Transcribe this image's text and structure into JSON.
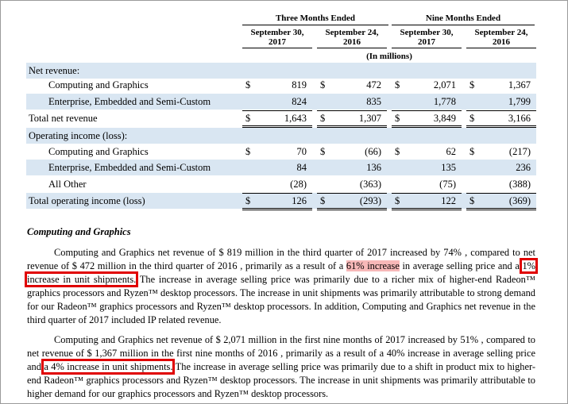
{
  "table": {
    "group_headers": [
      "Three Months Ended",
      "Nine Months Ended"
    ],
    "column_headers": [
      [
        "September 30,",
        "2017"
      ],
      [
        "September 24,",
        "2016"
      ],
      [
        "September 30,",
        "2017"
      ],
      [
        "September 24,",
        "2016"
      ]
    ],
    "units_note": "(In millions)",
    "rows": [
      {
        "label": "Net revenue:",
        "cells": [
          "",
          "",
          "",
          ""
        ],
        "dollars": false
      },
      {
        "label": "Computing and Graphics",
        "cells": [
          "819",
          "472",
          "2,071",
          "1,367"
        ],
        "dollars": true
      },
      {
        "label": "Enterprise, Embedded and Semi-Custom",
        "cells": [
          "824",
          "835",
          "1,778",
          "1,799"
        ],
        "dollars": false
      },
      {
        "label": "Total net revenue",
        "cells": [
          "1,643",
          "1,307",
          "3,849",
          "3,166"
        ],
        "dollars": true
      },
      {
        "label": "Operating income (loss):",
        "cells": [
          "",
          "",
          "",
          ""
        ],
        "dollars": false
      },
      {
        "label": "Computing and Graphics",
        "cells": [
          "70",
          "(66)",
          "62",
          "(217)"
        ],
        "dollars": true
      },
      {
        "label": "Enterprise, Embedded and Semi-Custom",
        "cells": [
          "84",
          "136",
          "135",
          "236"
        ],
        "dollars": false
      },
      {
        "label": "All Other",
        "cells": [
          "(28)",
          "(363)",
          "(75)",
          "(388)"
        ],
        "dollars": false
      },
      {
        "label": "Total operating income (loss)",
        "cells": [
          "126",
          "(293)",
          "122",
          "(369)"
        ],
        "dollars": true
      }
    ],
    "currency_symbol": "$"
  },
  "section": {
    "heading": "Computing and Graphics",
    "p1": {
      "a": "Computing and Graphics net revenue of $ 819 million in the third quarter of 2017 increased by 74% , compared to net revenue of $ 472 million in the third quarter of 2016 , primarily as a result of a ",
      "highlight": "61% increase",
      "b": " in average selling price and a ",
      "boxed": "1% increase in unit shipments.",
      "c": " The increase in average selling price was primarily due to a richer mix of higher-end Radeon™ graphics processors and Ryzen™ desktop processors. The increase in unit shipments was primarily attributable to strong demand for our Radeon™ graphics processors and Ryzen™ desktop processors. In addition, Computing and Graphics net revenue in the third quarter of 2017 included IP related revenue."
    },
    "p2": {
      "a": "Computing and Graphics net revenue of $ 2,071 million in the first nine months of 2017 increased by 51% , compared to net revenue of $ 1,367 million in the first nine months of 2016 , primarily as a result of a 40% increase in average selling price and ",
      "boxed": "a 4% increase in unit shipments.",
      "c": " The increase in average selling price was primarily due to a shift in product mix to higher-end Radeon™ graphics processors and Ryzen™ desktop processors. The increase in unit shipments was primarily attributable to higher demand for our graphics processors and Ryzen™ desktop processors."
    }
  }
}
